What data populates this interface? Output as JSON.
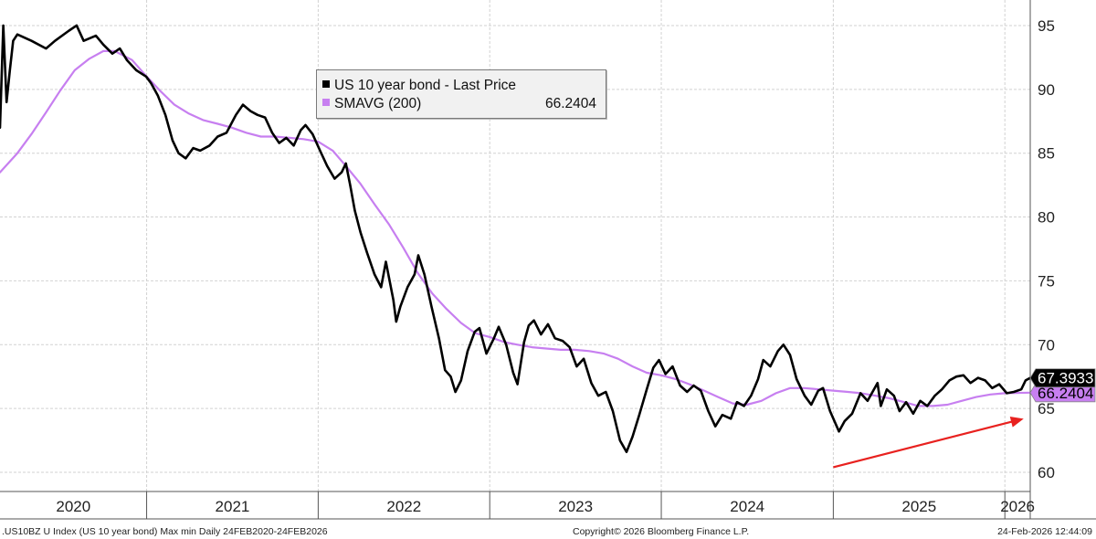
{
  "chart_data": {
    "type": "line",
    "x_range": [
      "2020-02-24",
      "2026-02-24"
    ],
    "ylim": [
      58.5,
      97
    ],
    "yticks": [
      60,
      65,
      70,
      75,
      80,
      85,
      90,
      95
    ],
    "year_labels": [
      "2020",
      "2021",
      "2022",
      "2023",
      "2024",
      "2025",
      "2026"
    ],
    "year_boundaries": [
      "2021-01-01",
      "2022-01-01",
      "2023-01-01",
      "2024-01-01",
      "2025-01-01",
      "2026-01-01"
    ],
    "legend": {
      "series1": "US 10 year bond - Last Price",
      "series2": "SMAVG (200)",
      "series2_value": "66.2404"
    },
    "last_price_label": "67.3933",
    "smavg_label": "66.2404",
    "series": [
      {
        "name": "US 10 year bond - Last Price",
        "color": "#000000",
        "points": [
          [
            "2020-02-24",
            87.0
          ],
          [
            "2020-03-02",
            95.0
          ],
          [
            "2020-03-09",
            89.0
          ],
          [
            "2020-03-16",
            91.5
          ],
          [
            "2020-03-23",
            93.8
          ],
          [
            "2020-04-01",
            94.3
          ],
          [
            "2020-05-01",
            93.8
          ],
          [
            "2020-06-01",
            93.2
          ],
          [
            "2020-06-20",
            93.8
          ],
          [
            "2020-07-20",
            94.6
          ],
          [
            "2020-08-05",
            95.0
          ],
          [
            "2020-08-20",
            93.8
          ],
          [
            "2020-09-15",
            94.2
          ],
          [
            "2020-10-01",
            93.5
          ],
          [
            "2020-10-20",
            92.8
          ],
          [
            "2020-11-05",
            93.2
          ],
          [
            "2020-11-20",
            92.3
          ],
          [
            "2020-12-10",
            91.5
          ],
          [
            "2020-12-31",
            91.0
          ],
          [
            "2021-01-10",
            90.5
          ],
          [
            "2021-01-25",
            89.5
          ],
          [
            "2021-02-10",
            88.0
          ],
          [
            "2021-02-25",
            86.0
          ],
          [
            "2021-03-10",
            85.0
          ],
          [
            "2021-03-25",
            84.6
          ],
          [
            "2021-04-10",
            85.4
          ],
          [
            "2021-04-25",
            85.2
          ],
          [
            "2021-05-15",
            85.6
          ],
          [
            "2021-06-01",
            86.3
          ],
          [
            "2021-06-20",
            86.6
          ],
          [
            "2021-07-10",
            88.0
          ],
          [
            "2021-07-25",
            88.8
          ],
          [
            "2021-08-10",
            88.3
          ],
          [
            "2021-08-25",
            88.0
          ],
          [
            "2021-09-10",
            87.8
          ],
          [
            "2021-09-25",
            86.6
          ],
          [
            "2021-10-10",
            85.8
          ],
          [
            "2021-10-25",
            86.2
          ],
          [
            "2021-11-10",
            85.6
          ],
          [
            "2021-11-25",
            86.8
          ],
          [
            "2021-12-05",
            87.2
          ],
          [
            "2021-12-20",
            86.5
          ],
          [
            "2022-01-05",
            85.2
          ],
          [
            "2022-01-20",
            84.0
          ],
          [
            "2022-02-05",
            83.0
          ],
          [
            "2022-02-20",
            83.5
          ],
          [
            "2022-03-01",
            84.2
          ],
          [
            "2022-03-10",
            82.5
          ],
          [
            "2022-03-20",
            80.5
          ],
          [
            "2022-04-01",
            78.8
          ],
          [
            "2022-04-15",
            77.2
          ],
          [
            "2022-05-01",
            75.5
          ],
          [
            "2022-05-15",
            74.5
          ],
          [
            "2022-05-25",
            76.5
          ],
          [
            "2022-06-10",
            73.5
          ],
          [
            "2022-06-16",
            71.8
          ],
          [
            "2022-06-25",
            73.0
          ],
          [
            "2022-07-10",
            74.5
          ],
          [
            "2022-07-25",
            75.5
          ],
          [
            "2022-08-02",
            77.0
          ],
          [
            "2022-08-15",
            75.5
          ],
          [
            "2022-08-30",
            73.0
          ],
          [
            "2022-09-15",
            70.5
          ],
          [
            "2022-09-28",
            68.0
          ],
          [
            "2022-10-10",
            67.5
          ],
          [
            "2022-10-20",
            66.3
          ],
          [
            "2022-11-01",
            67.2
          ],
          [
            "2022-11-15",
            69.5
          ],
          [
            "2022-11-30",
            71.0
          ],
          [
            "2022-12-10",
            71.3
          ],
          [
            "2022-12-25",
            69.3
          ],
          [
            "2023-01-10",
            70.5
          ],
          [
            "2023-01-20",
            71.4
          ],
          [
            "2023-02-05",
            70.0
          ],
          [
            "2023-02-20",
            67.8
          ],
          [
            "2023-03-01",
            66.9
          ],
          [
            "2023-03-15",
            70.2
          ],
          [
            "2023-03-25",
            71.5
          ],
          [
            "2023-04-05",
            71.9
          ],
          [
            "2023-04-20",
            70.8
          ],
          [
            "2023-05-05",
            71.6
          ],
          [
            "2023-05-20",
            70.5
          ],
          [
            "2023-06-05",
            70.3
          ],
          [
            "2023-06-20",
            69.8
          ],
          [
            "2023-07-05",
            68.3
          ],
          [
            "2023-07-20",
            68.9
          ],
          [
            "2023-08-05",
            67.0
          ],
          [
            "2023-08-20",
            66.0
          ],
          [
            "2023-09-05",
            66.3
          ],
          [
            "2023-09-20",
            64.8
          ],
          [
            "2023-10-05",
            62.5
          ],
          [
            "2023-10-19",
            61.6
          ],
          [
            "2023-11-01",
            62.8
          ],
          [
            "2023-11-15",
            64.5
          ],
          [
            "2023-12-01",
            66.5
          ],
          [
            "2023-12-15",
            68.2
          ],
          [
            "2023-12-27",
            68.8
          ],
          [
            "2024-01-10",
            67.7
          ],
          [
            "2024-01-25",
            68.3
          ],
          [
            "2024-02-10",
            66.8
          ],
          [
            "2024-02-25",
            66.3
          ],
          [
            "2024-03-10",
            66.8
          ],
          [
            "2024-03-25",
            66.4
          ],
          [
            "2024-04-10",
            64.8
          ],
          [
            "2024-04-25",
            63.6
          ],
          [
            "2024-05-10",
            64.5
          ],
          [
            "2024-05-28",
            64.2
          ],
          [
            "2024-06-10",
            65.5
          ],
          [
            "2024-06-25",
            65.2
          ],
          [
            "2024-07-10",
            66.0
          ],
          [
            "2024-07-25",
            67.3
          ],
          [
            "2024-08-05",
            68.8
          ],
          [
            "2024-08-20",
            68.3
          ],
          [
            "2024-09-05",
            69.5
          ],
          [
            "2024-09-17",
            70.0
          ],
          [
            "2024-10-01",
            69.2
          ],
          [
            "2024-10-15",
            67.3
          ],
          [
            "2024-11-01",
            66.0
          ],
          [
            "2024-11-15",
            65.3
          ],
          [
            "2024-11-30",
            66.4
          ],
          [
            "2024-12-10",
            66.6
          ],
          [
            "2024-12-25",
            64.8
          ],
          [
            "2025-01-13",
            63.2
          ],
          [
            "2025-01-25",
            64.0
          ],
          [
            "2025-02-10",
            64.6
          ],
          [
            "2025-02-28",
            66.2
          ],
          [
            "2025-03-15",
            65.6
          ],
          [
            "2025-04-05",
            67.0
          ],
          [
            "2025-04-12",
            65.2
          ],
          [
            "2025-04-25",
            66.5
          ],
          [
            "2025-05-10",
            66.0
          ],
          [
            "2025-05-22",
            64.8
          ],
          [
            "2025-06-05",
            65.5
          ],
          [
            "2025-06-20",
            64.6
          ],
          [
            "2025-07-05",
            65.6
          ],
          [
            "2025-07-20",
            65.2
          ],
          [
            "2025-08-05",
            66.0
          ],
          [
            "2025-08-20",
            66.5
          ],
          [
            "2025-09-05",
            67.2
          ],
          [
            "2025-09-20",
            67.5
          ],
          [
            "2025-10-05",
            67.6
          ],
          [
            "2025-10-20",
            67.0
          ],
          [
            "2025-11-05",
            67.4
          ],
          [
            "2025-11-20",
            67.2
          ],
          [
            "2025-12-05",
            66.6
          ],
          [
            "2025-12-20",
            66.9
          ],
          [
            "2026-01-05",
            66.2
          ],
          [
            "2026-01-20",
            66.3
          ],
          [
            "2026-02-05",
            66.5
          ],
          [
            "2026-02-14",
            67.2
          ],
          [
            "2026-02-24",
            67.3933
          ]
        ]
      },
      {
        "name": "SMAVG (200)",
        "color": "#c77ff0",
        "points": [
          [
            "2020-02-24",
            83.5
          ],
          [
            "2020-04-01",
            85.0
          ],
          [
            "2020-05-01",
            86.5
          ],
          [
            "2020-06-01",
            88.2
          ],
          [
            "2020-07-01",
            89.9
          ],
          [
            "2020-08-01",
            91.5
          ],
          [
            "2020-09-01",
            92.4
          ],
          [
            "2020-10-01",
            93.0
          ],
          [
            "2020-10-25",
            93.0
          ],
          [
            "2020-12-01",
            92.3
          ],
          [
            "2021-01-01",
            91.0
          ],
          [
            "2021-02-01",
            89.8
          ],
          [
            "2021-03-01",
            88.8
          ],
          [
            "2021-04-01",
            88.1
          ],
          [
            "2021-05-01",
            87.6
          ],
          [
            "2021-06-01",
            87.3
          ],
          [
            "2021-07-01",
            87.0
          ],
          [
            "2021-08-01",
            86.6
          ],
          [
            "2021-09-01",
            86.3
          ],
          [
            "2021-10-01",
            86.3
          ],
          [
            "2021-11-01",
            86.2
          ],
          [
            "2021-12-01",
            86.1
          ],
          [
            "2022-01-01",
            85.9
          ],
          [
            "2022-02-01",
            85.2
          ],
          [
            "2022-03-01",
            84.0
          ],
          [
            "2022-04-01",
            82.6
          ],
          [
            "2022-05-01",
            81.0
          ],
          [
            "2022-06-01",
            79.4
          ],
          [
            "2022-07-01",
            77.6
          ],
          [
            "2022-08-01",
            75.6
          ],
          [
            "2022-09-01",
            74.0
          ],
          [
            "2022-10-01",
            72.8
          ],
          [
            "2022-11-01",
            71.7
          ],
          [
            "2022-12-01",
            70.9
          ],
          [
            "2023-01-01",
            70.6
          ],
          [
            "2023-02-01",
            70.2
          ],
          [
            "2023-03-01",
            70.0
          ],
          [
            "2023-04-01",
            69.8
          ],
          [
            "2023-05-01",
            69.7
          ],
          [
            "2023-06-01",
            69.6
          ],
          [
            "2023-07-01",
            69.6
          ],
          [
            "2023-08-01",
            69.5
          ],
          [
            "2023-09-01",
            69.3
          ],
          [
            "2023-10-01",
            68.9
          ],
          [
            "2023-11-01",
            68.3
          ],
          [
            "2023-12-01",
            67.8
          ],
          [
            "2024-01-01",
            67.6
          ],
          [
            "2024-02-01",
            67.3
          ],
          [
            "2024-03-01",
            66.9
          ],
          [
            "2024-04-01",
            66.4
          ],
          [
            "2024-05-01",
            65.9
          ],
          [
            "2024-06-01",
            65.4
          ],
          [
            "2024-07-01",
            65.3
          ],
          [
            "2024-08-01",
            65.6
          ],
          [
            "2024-09-01",
            66.2
          ],
          [
            "2024-10-01",
            66.6
          ],
          [
            "2024-11-01",
            66.6
          ],
          [
            "2024-12-01",
            66.5
          ],
          [
            "2025-01-01",
            66.4
          ],
          [
            "2025-02-01",
            66.3
          ],
          [
            "2025-03-01",
            66.2
          ],
          [
            "2025-04-01",
            66.0
          ],
          [
            "2025-05-01",
            65.8
          ],
          [
            "2025-06-01",
            65.5
          ],
          [
            "2025-07-01",
            65.2
          ],
          [
            "2025-08-01",
            65.2
          ],
          [
            "2025-09-01",
            65.3
          ],
          [
            "2025-10-01",
            65.6
          ],
          [
            "2025-11-01",
            65.9
          ],
          [
            "2025-12-01",
            66.1
          ],
          [
            "2026-01-01",
            66.2
          ],
          [
            "2026-02-24",
            66.2404
          ]
        ]
      }
    ],
    "annotation_arrow": {
      "from": [
        "2025-01-01",
        60.4
      ],
      "to": [
        "2026-02-10",
        64.2
      ],
      "color": "#e8211f"
    }
  },
  "footer": {
    "left": ".US10BZ U Index (US 10 year bond) Max min Daily 24FEB2020-24FEB2026",
    "center": "Copyright© 2026 Bloomberg Finance L.P.",
    "right": "24-Feb-2026 12:44:09"
  }
}
